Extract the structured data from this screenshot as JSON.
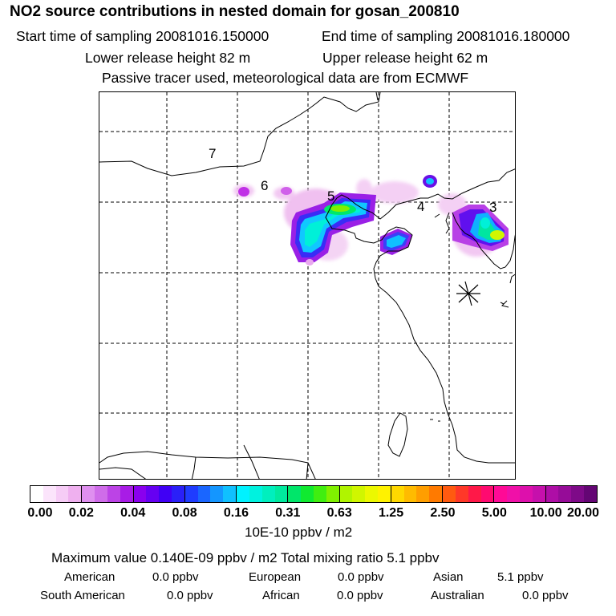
{
  "header": {
    "title": "NO2 source contributions in nested domain for gosan_200810",
    "start": "Start time of sampling 20081016.150000",
    "end": "End time of sampling 20081016.180000",
    "lower": "Lower release height   82 m",
    "upper": "Upper release height   62 m",
    "tracer": "Passive tracer used, meteorological data are from ECMWF"
  },
  "map": {
    "region_labels": [
      "7",
      "6",
      "5",
      "4",
      "3"
    ],
    "receptor_marker": "asterisk-icon"
  },
  "colorbar": {
    "ticks": [
      "0.00",
      "0.02",
      "0.04",
      "0.08",
      "0.16",
      "0.31",
      "0.63",
      "1.25",
      "2.50",
      "5.00",
      "10.00",
      "20.00"
    ],
    "unit": "10E-10 ppbv / m2",
    "segments": [
      [
        "#ffffff",
        "#fbe4fb",
        "#f6ccf6",
        "#efb0ef"
      ],
      [
        "#df8fef",
        "#cf6ce9",
        "#bc43e6",
        "#a81ce6"
      ],
      [
        "#8a00ee",
        "#6600f2",
        "#4000f5",
        "#2a20f8"
      ],
      [
        "#1f3cff",
        "#1a66ff",
        "#1496ff",
        "#10c0ff"
      ],
      [
        "#00f2ff",
        "#00f2df",
        "#00efbe",
        "#00ea9e"
      ],
      [
        "#00e66a",
        "#10ea30",
        "#40ee10",
        "#80f000"
      ],
      [
        "#b0f400",
        "#d0f600",
        "#ecf800",
        "#fff200"
      ],
      [
        "#ffd800",
        "#ffbb00",
        "#ff9e00",
        "#ff7a00"
      ],
      [
        "#ff5a10",
        "#ff3828",
        "#ff1848",
        "#ff0a70"
      ],
      [
        "#ff0a96",
        "#f010a8",
        "#dd10ac",
        "#c610ac"
      ],
      [
        "#ae0ea6",
        "#960c98",
        "#7e0a88",
        "#640674"
      ]
    ]
  },
  "summary": {
    "max_line": "Maximum value  0.140E-09 ppbv / m2      Total mixing ratio       5.1 ppbv",
    "regions": [
      {
        "name": "American",
        "value": "0.0 ppbv"
      },
      {
        "name": "European",
        "value": "0.0 ppbv"
      },
      {
        "name": "Asian",
        "value": "5.1 ppbv"
      },
      {
        "name": "South American",
        "value": "0.0 ppbv"
      },
      {
        "name": "African",
        "value": "0.0 ppbv"
      },
      {
        "name": "Australian",
        "value": "0.0 ppbv"
      }
    ]
  }
}
